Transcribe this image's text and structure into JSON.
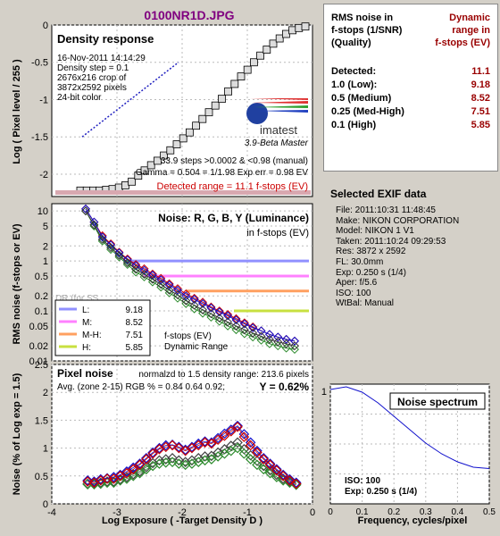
{
  "title": "0100NR1D.JPG",
  "colors": {
    "background": "#d4d0c8",
    "title": "#800080",
    "red": "#cc0000",
    "green": "#2e8b2e",
    "blue": "#1010cc",
    "gray": "#444444"
  },
  "density_panel": {
    "heading": "Density response",
    "info_lines": [
      "16-Nov-2011 14:14:29",
      "Density step = 0.1",
      "2676x216 crop of",
      "3872x2592 pixels",
      "24-bit color"
    ],
    "logo_text": "imatest",
    "version": "3.9-Beta  Master",
    "steps_line": "33.9 steps >0.0002 & <0.98 (manual)",
    "gamma_line": "Gamma = 0.504 = 1/1.98  Exp err = 0.98 EV",
    "detected_range": "Detected range = 11.1 f-stops (EV)",
    "ylabel": "Log ( Pixel level / 255 )",
    "yticks": [
      "0",
      "-0.5",
      "-1",
      "-1.5",
      "-2"
    ]
  },
  "noise_panel": {
    "heading": "Noise: R, G, B, Y (Luminance)",
    "subheading": "in f-stops (EV)",
    "ylabel": "RMS noise (f-stops or EV)",
    "yticks": [
      "10",
      "5",
      "2",
      "1",
      "0.5",
      "0.2",
      "0.1",
      "0.05",
      "0.02",
      "0.01"
    ],
    "legend": [
      {
        "label": "L:",
        "value": "9.18",
        "color": "#9090ff"
      },
      {
        "label": "M:",
        "value": "8.52",
        "color": "#ff80ff"
      },
      {
        "label": "M-H:",
        "value": "7.51",
        "color": "#ffa060"
      },
      {
        "label": "H:",
        "value": "5.85",
        "color": "#c8e040"
      }
    ],
    "annotation_1": "f-stops (EV)",
    "annotation_2": "Dynamic Range",
    "faint_label": "DR (for SS"
  },
  "pixel_panel": {
    "heading": "Pixel noise",
    "norm_line": "normalzd to 1.5 density range: 213.6 pixels",
    "avg_line": "Avg. (zone 2-15) RGB % = 0.84  0.64  0.92;",
    "y_line": "Y = 0.62%",
    "ylabel": "Noise (% of Log exp = 1.5)",
    "xlabel": "Log Exposure ( -Target Density D )",
    "yticks": [
      "2.5",
      "2",
      "1.5",
      "1",
      "0.5",
      "0"
    ],
    "xticks": [
      "-4",
      "-3",
      "-2",
      "-1",
      "0"
    ]
  },
  "rms_table": {
    "header_left": [
      "RMS noise in",
      "f-stops (1/SNR)",
      "(Quality)"
    ],
    "header_right": [
      "Dynamic",
      "range in",
      "f-stops (EV)"
    ],
    "rows": [
      {
        "label": "Detected:",
        "value": "11.1"
      },
      {
        "label": "1.0  (Low):",
        "value": "9.18"
      },
      {
        "label": "0.5  (Medium)",
        "value": "8.52"
      },
      {
        "label": "0.25 (Med-High)",
        "value": "7.51"
      },
      {
        "label": "0.1  (High)",
        "value": "5.85"
      }
    ]
  },
  "exif": {
    "heading": "Selected EXIF data",
    "lines": [
      "File:  2011:10:31 11:48:45",
      "Make:  NIKON CORPORATION",
      "Model: NIKON 1 V1",
      "Taken:  2011:10:24 09:29:53",
      "Res:    3872 x 2592",
      "FL:  30.0mm",
      "Exp:  0.250 s  (1/4)",
      "Aper:  f/5.6",
      "ISO:   100",
      "WtBal: Manual"
    ]
  },
  "spectrum_panel": {
    "heading": "Noise spectrum",
    "xlabel": "Frequency, cycles/pixel",
    "iso_line": "ISO:    100",
    "exp_line": "Exp:   0.250 s    (1/4)",
    "xticks": [
      "0",
      "0.1",
      "0.2",
      "0.3",
      "0.4",
      "0.5"
    ],
    "yticks": [
      "1"
    ]
  },
  "chart_data": [
    {
      "type": "line",
      "title": "Density response",
      "ylabel": "Log ( Pixel level / 255 )",
      "ylim": [
        -2.3,
        0
      ],
      "series": [
        {
          "values": [
            -2.22,
            -2.22,
            -2.22,
            -2.22,
            -2.21,
            -2.2,
            -2.18,
            -2.15,
            -2.1,
            -2.02,
            -1.95,
            -1.88,
            -1.82,
            -1.75,
            -1.68,
            -1.6,
            -1.52,
            -1.44,
            -1.35,
            -1.26,
            -1.17,
            -1.08,
            -0.99,
            -0.89,
            -0.79,
            -0.69,
            -0.6,
            -0.5,
            -0.41,
            -0.33,
            -0.25,
            -0.18,
            -0.12,
            -0.07,
            -0.04,
            -0.02
          ]
        },
        {
          "values": [
            -1.5,
            -1.3,
            -1.1,
            -0.9,
            -0.7,
            -0.5
          ]
        }
      ]
    },
    {
      "type": "line",
      "title": "Noise: R, G, B, Y (Luminance)",
      "ylabel": "RMS noise (f-stops or EV)",
      "ylim": [
        0.01,
        10
      ],
      "log_y": true,
      "x_axis": "Log Exposure",
      "series": [
        {
          "name": "R",
          "values": [
            11,
            6,
            3.2,
            2.2,
            1.5,
            1.1,
            0.85,
            0.7,
            0.55,
            0.45,
            0.35,
            0.28,
            0.22,
            0.18,
            0.15,
            0.12,
            0.1,
            0.085,
            0.07,
            0.058,
            0.048,
            0.04,
            0.034,
            0.03,
            0.027,
            0.025
          ]
        },
        {
          "name": "G",
          "values": [
            10,
            5,
            2.5,
            1.7,
            1.2,
            0.85,
            0.6,
            0.48,
            0.38,
            0.3,
            0.23,
            0.18,
            0.14,
            0.11,
            0.09,
            0.075,
            0.062,
            0.05,
            0.042,
            0.035,
            0.03,
            0.026,
            0.022,
            0.02,
            0.018,
            0.017
          ]
        },
        {
          "name": "B",
          "values": [
            11,
            6,
            3,
            2.1,
            1.45,
            1.05,
            0.8,
            0.65,
            0.52,
            0.42,
            0.33,
            0.26,
            0.2,
            0.17,
            0.14,
            0.115,
            0.095,
            0.08,
            0.066,
            0.055,
            0.046,
            0.04,
            0.034,
            0.03,
            0.027,
            0.025
          ]
        },
        {
          "name": "Y",
          "values": [
            10,
            5.3,
            2.7,
            1.85,
            1.3,
            0.92,
            0.68,
            0.54,
            0.43,
            0.34,
            0.26,
            0.21,
            0.16,
            0.13,
            0.105,
            0.088,
            0.072,
            0.06,
            0.05,
            0.042,
            0.036,
            0.031,
            0.027,
            0.024,
            0.022,
            0.02
          ]
        }
      ],
      "thresholds": [
        1.0,
        0.5,
        0.25,
        0.1
      ]
    },
    {
      "type": "line",
      "title": "Pixel noise",
      "xlabel": "Log Exposure ( -Target Density D )",
      "ylabel": "Noise (% of Log exp = 1.5)",
      "xlim": [
        -4,
        0
      ],
      "ylim": [
        0,
        2.5
      ],
      "x": [
        -3.45,
        -3.35,
        -3.25,
        -3.15,
        -3.05,
        -2.95,
        -2.85,
        -2.75,
        -2.65,
        -2.55,
        -2.45,
        -2.35,
        -2.25,
        -2.15,
        -2.05,
        -1.95,
        -1.85,
        -1.75,
        -1.65,
        -1.55,
        -1.45,
        -1.35,
        -1.25,
        -1.15,
        -1.05,
        -0.95,
        -0.85,
        -0.75,
        -0.65,
        -0.55,
        -0.45,
        -0.35,
        -0.25
      ],
      "series": [
        {
          "name": "R",
          "values": [
            0.4,
            0.38,
            0.42,
            0.45,
            0.45,
            0.5,
            0.55,
            0.62,
            0.7,
            0.8,
            0.9,
            0.98,
            1.02,
            1.05,
            1.0,
            0.95,
            1.0,
            1.05,
            1.1,
            1.08,
            1.15,
            1.22,
            1.3,
            1.38,
            1.2,
            1.05,
            0.92,
            0.8,
            0.7,
            0.6,
            0.5,
            0.42,
            0.36
          ]
        },
        {
          "name": "G",
          "values": [
            0.35,
            0.35,
            0.36,
            0.38,
            0.38,
            0.42,
            0.45,
            0.5,
            0.55,
            0.62,
            0.68,
            0.72,
            0.74,
            0.75,
            0.72,
            0.7,
            0.72,
            0.75,
            0.78,
            0.8,
            0.85,
            0.9,
            0.95,
            1.0,
            0.9,
            0.8,
            0.7,
            0.62,
            0.55,
            0.48,
            0.42,
            0.38,
            0.34
          ]
        },
        {
          "name": "B",
          "values": [
            0.42,
            0.4,
            0.44,
            0.46,
            0.48,
            0.52,
            0.58,
            0.65,
            0.72,
            0.82,
            0.92,
            1.0,
            1.05,
            1.06,
            1.02,
            0.97,
            1.02,
            1.08,
            1.12,
            1.1,
            1.18,
            1.26,
            1.33,
            1.4,
            1.25,
            1.1,
            0.95,
            0.82,
            0.72,
            0.62,
            0.52,
            0.44,
            0.38
          ]
        },
        {
          "name": "Y",
          "values": [
            0.36,
            0.36,
            0.38,
            0.4,
            0.4,
            0.44,
            0.48,
            0.53,
            0.58,
            0.66,
            0.73,
            0.78,
            0.8,
            0.82,
            0.78,
            0.75,
            0.78,
            0.82,
            0.85,
            0.86,
            0.92,
            0.98,
            1.04,
            1.1,
            0.98,
            0.87,
            0.77,
            0.68,
            0.6,
            0.52,
            0.45,
            0.4,
            0.36
          ]
        }
      ]
    },
    {
      "type": "line",
      "title": "Noise spectrum",
      "xlabel": "Frequency, cycles/pixel",
      "xlim": [
        0,
        0.5
      ],
      "x": [
        0,
        0.05,
        0.1,
        0.15,
        0.2,
        0.25,
        0.3,
        0.35,
        0.4,
        0.45,
        0.5
      ],
      "series": [
        {
          "values": [
            0.98,
            1.0,
            0.96,
            0.88,
            0.78,
            0.68,
            0.58,
            0.5,
            0.44,
            0.4,
            0.39
          ]
        }
      ]
    }
  ]
}
